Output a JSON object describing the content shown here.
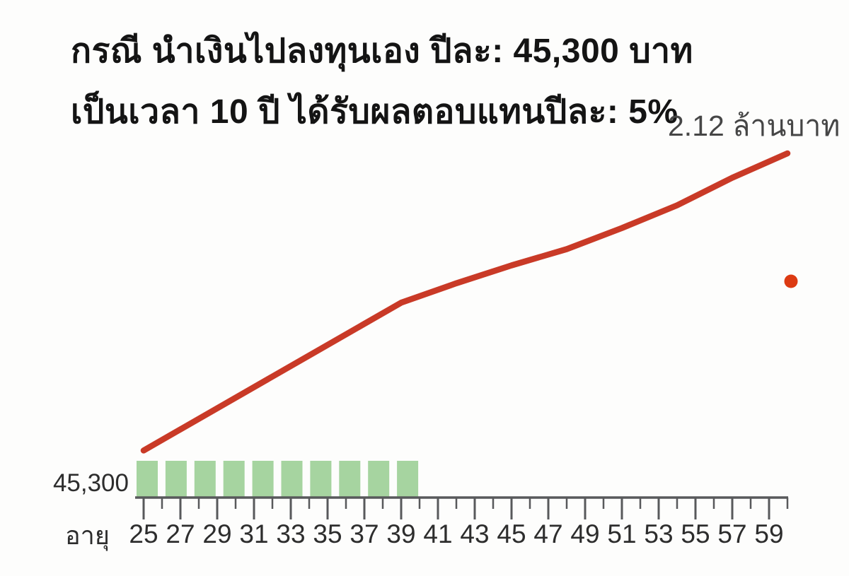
{
  "title": {
    "line1": "กรณี นำเงินไปลงทุนเอง ปีละ: 45,300 บาท",
    "line2": "เป็นเวลา 10 ปี ได้รับผลตอบแทนปีละ: 5%"
  },
  "annotation": {
    "end_value": "2.12 ล้านบาท"
  },
  "labels": {
    "contribution": "45,300",
    "x_axis": "อายุ"
  },
  "colors": {
    "line": "#c93a27",
    "bar": "#a6d4a0",
    "axis": "#58595b",
    "tick_label": "#2d2d2d",
    "dot": "#dc3a12"
  },
  "chart_data": {
    "type": "line",
    "title": "กรณี นำเงินไปลงทุนเอง ปีละ: 45,300 บาท เป็นเวลา 10 ปี ได้รับผลตอบแทนปีละ: 5%",
    "xlabel": "อายุ",
    "ylabel": "",
    "x_range": [
      25,
      60
    ],
    "x_tick_labels": [
      25,
      27,
      29,
      31,
      33,
      35,
      37,
      39,
      41,
      43,
      45,
      47,
      49,
      51,
      53,
      55,
      57,
      59
    ],
    "x_minor_tick_every_year": true,
    "ylim": [
      0,
      2.12
    ],
    "grid": false,
    "legend": false,
    "line_series": {
      "name": "accumulated-investment-value",
      "unit": "million-baht",
      "values_estimated_from_drawing": true,
      "points": [
        [
          25,
          0.29
        ],
        [
          39,
          1.2
        ],
        [
          42,
          1.32
        ],
        [
          45,
          1.43
        ],
        [
          48,
          1.53
        ],
        [
          51,
          1.66
        ],
        [
          54,
          1.8
        ],
        [
          57,
          1.97
        ],
        [
          60,
          2.12
        ]
      ],
      "end_label": "2.12 ล้านบาท"
    },
    "bars": {
      "value_label": "45,300",
      "count": 10,
      "x_start": 25,
      "x_end": 40
    }
  }
}
